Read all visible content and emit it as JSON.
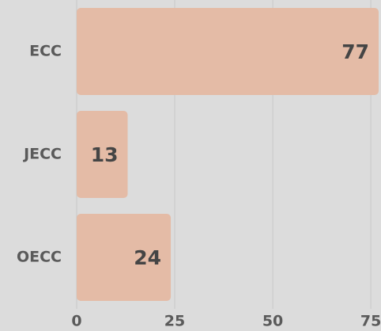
{
  "chart_data": {
    "type": "hbar",
    "categories": [
      "ECC",
      "JECC",
      "OECC"
    ],
    "values": [
      77,
      13,
      24
    ],
    "color": "#e4bba6",
    "xlim": [
      0,
      77.6
    ],
    "xticks": [
      0,
      25,
      50,
      75
    ],
    "grid": true
  }
}
